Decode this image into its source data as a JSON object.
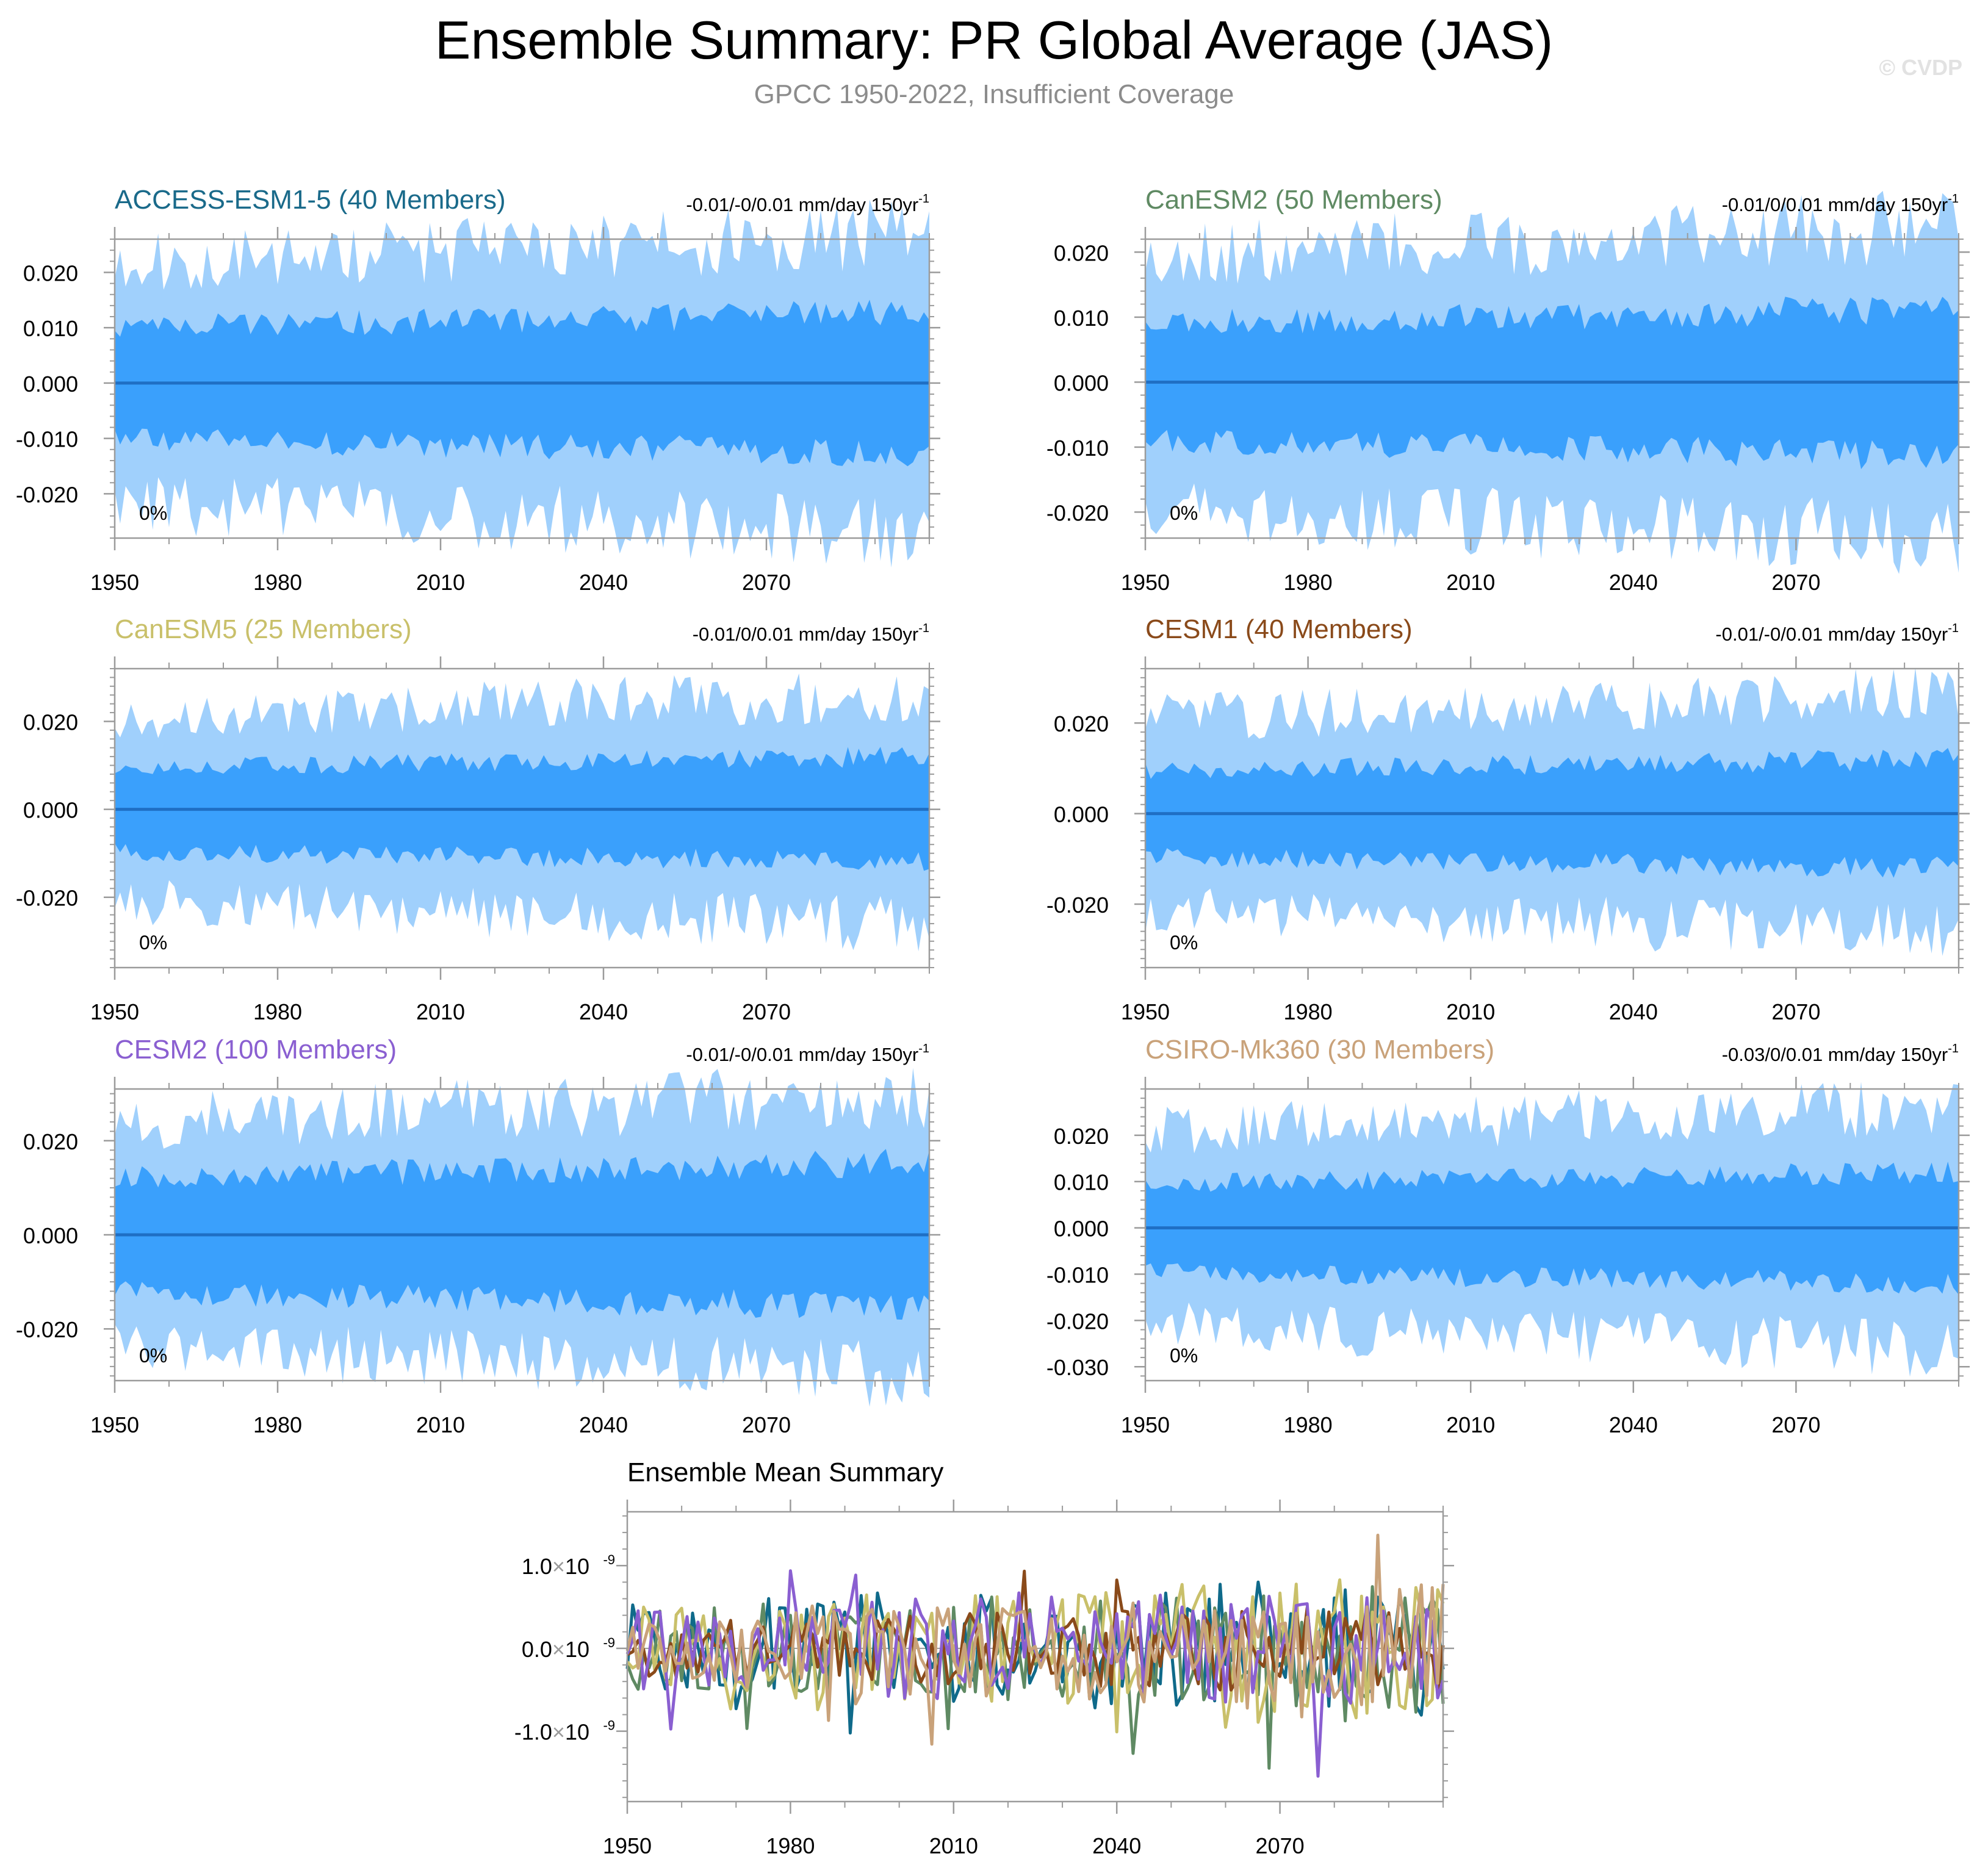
{
  "header": {
    "title": "Ensemble Summary: PR Global Average (JAS)",
    "subtitle": "GPCC 1950-2022, Insufficient Coverage",
    "copyright": "© CVDP"
  },
  "colors": {
    "band_outer": "#a0d0fc",
    "band_inner": "#3aa0fc",
    "mean_line": "#1f6fc4"
  },
  "chart_data": [
    {
      "type": "area",
      "title": "ACCESS-ESM1-5 (40 Members)",
      "title_color": "#1a6a8a",
      "trend_label": "-0.01/-0/0.01 mm/day 150yr",
      "trend_exp": "-1",
      "pct_label": "0%",
      "x_range": [
        1950,
        2100
      ],
      "xticks": [
        "1950",
        "1980",
        "2010",
        "2040",
        "2070"
      ],
      "yticks": [
        "0.020",
        "0.010",
        "0.000",
        "-0.010",
        "-0.020"
      ],
      "ytick_values": [
        0.02,
        0.01,
        0,
        -0.01,
        -0.02
      ],
      "ylim": [
        -0.028,
        0.026
      ],
      "outer_amp": 0.0195,
      "inner_amp": 0.0095,
      "seed": 11
    },
    {
      "type": "area",
      "title": "CanESM2 (50 Members)",
      "title_color": "#5f8a63",
      "trend_label": "-0.01/0/0.01 mm/day 150yr",
      "trend_exp": "-1",
      "pct_label": "0%",
      "x_range": [
        1950,
        2100
      ],
      "xticks": [
        "1950",
        "1980",
        "2010",
        "2040",
        "2070"
      ],
      "yticks": [
        "0.020",
        "0.010",
        "0.000",
        "-0.010",
        "-0.020"
      ],
      "ytick_values": [
        0.02,
        0.01,
        0,
        -0.01,
        -0.02
      ],
      "ylim": [
        -0.024,
        0.022
      ],
      "outer_amp": 0.0175,
      "inner_amp": 0.0085,
      "seed": 23
    },
    {
      "type": "area",
      "title": "CanESM5 (25 Members)",
      "title_color": "#c9c06a",
      "trend_label": "-0.01/0/0.01 mm/day 150yr",
      "trend_exp": "-1",
      "pct_label": "0%",
      "x_range": [
        1950,
        2100
      ],
      "xticks": [
        "1950",
        "1980",
        "2010",
        "2040",
        "2070"
      ],
      "yticks": [
        "0.020",
        "0.000",
        "-0.020"
      ],
      "ytick_values": [
        0.02,
        0,
        -0.02
      ],
      "ylim": [
        -0.036,
        0.032
      ],
      "outer_amp": 0.019,
      "inner_amp": 0.009,
      "seed": 37
    },
    {
      "type": "area",
      "title": "CESM1 (40 Members)",
      "title_color": "#8a4a1a",
      "trend_label": "-0.01/-0/0.01 mm/day 150yr",
      "trend_exp": "-1",
      "pct_label": "0%",
      "x_range": [
        1950,
        2100
      ],
      "xticks": [
        "1950",
        "1980",
        "2010",
        "2040",
        "2070"
      ],
      "yticks": [
        "0.020",
        "0.000",
        "-0.020"
      ],
      "ytick_values": [
        0.02,
        0,
        -0.02
      ],
      "ylim": [
        -0.034,
        0.032
      ],
      "outer_amp": 0.019,
      "inner_amp": 0.009,
      "seed": 41
    },
    {
      "type": "area",
      "title": "CESM2 (100 Members)",
      "title_color": "#8a5fd1",
      "trend_label": "-0.01/-0/0.01 mm/day 150yr",
      "trend_exp": "-1",
      "pct_label": "0%",
      "x_range": [
        1950,
        2100
      ],
      "xticks": [
        "1950",
        "1980",
        "2010",
        "2040",
        "2070"
      ],
      "yticks": [
        "0.020",
        "0.000",
        "-0.020"
      ],
      "ytick_values": [
        0.02,
        0,
        -0.02
      ],
      "ylim": [
        -0.031,
        0.031
      ],
      "outer_amp": 0.0215,
      "inner_amp": 0.0115,
      "seed": 53
    },
    {
      "type": "area",
      "title": "CSIRO-Mk360 (30 Members)",
      "title_color": "#c9a27a",
      "trend_label": "-0.03/0/0.01 mm/day 150yr",
      "trend_exp": "-1",
      "pct_label": "0%",
      "x_range": [
        1950,
        2100
      ],
      "xticks": [
        "1950",
        "1980",
        "2010",
        "2040",
        "2070"
      ],
      "yticks": [
        "0.020",
        "0.010",
        "0.000",
        "-0.010",
        "-0.020",
        "-0.030"
      ],
      "ytick_values": [
        0.02,
        0.01,
        0,
        -0.01,
        -0.02,
        -0.03
      ],
      "ylim": [
        -0.033,
        0.03
      ],
      "outer_amp": 0.019,
      "inner_amp": 0.009,
      "seed": 67
    },
    {
      "type": "line",
      "title": "Ensemble Mean Summary",
      "x_range": [
        1950,
        2100
      ],
      "xticks": [
        "1950",
        "1980",
        "2010",
        "2040",
        "2070"
      ],
      "yticks": [
        {
          "mant": "1.0",
          "exp": "-9",
          "value": 1.0
        },
        {
          "mant": "0.0",
          "exp": "-9",
          "value": 0.0
        },
        {
          "mant": "-1.0",
          "exp": "-9",
          "value": -1.0
        }
      ],
      "ylim": [
        -1.85,
        1.65
      ],
      "series": [
        {
          "name": "ACCESS-ESM1-5",
          "color": "#0f6a8a",
          "amp": 0.55,
          "seed": 101
        },
        {
          "name": "CanESM2",
          "color": "#5f8a63",
          "amp": 0.5,
          "seed": 202
        },
        {
          "name": "CanESM5",
          "color": "#c9c06a",
          "amp": 0.55,
          "seed": 303
        },
        {
          "name": "CESM1",
          "color": "#8a4a1a",
          "amp": 0.35,
          "seed": 404
        },
        {
          "name": "CESM2",
          "color": "#8a5fd1",
          "amp": 0.5,
          "seed": 505
        },
        {
          "name": "CSIRO-Mk360",
          "color": "#c9a27a",
          "amp": 0.5,
          "seed": 606
        }
      ]
    }
  ]
}
